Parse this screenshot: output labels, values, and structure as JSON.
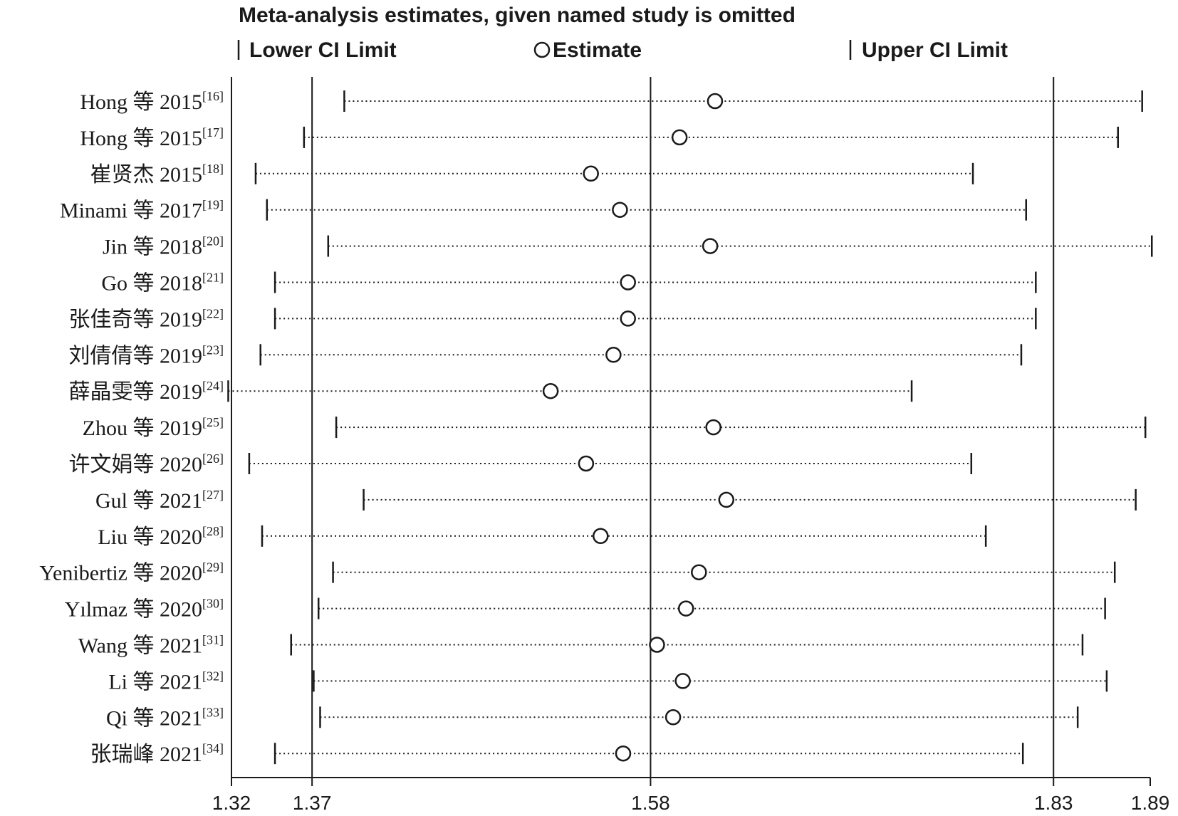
{
  "chart_data": {
    "type": "forest",
    "title": "Meta-analysis estimates, given named study is omitted",
    "legend": {
      "lower": "Lower CI Limit",
      "estimate": "Estimate",
      "upper": "Upper CI Limit"
    },
    "xlim": [
      1.32,
      1.89
    ],
    "ticks": [
      "1.32",
      "1.37",
      "1.58",
      "1.83",
      "1.89"
    ],
    "reference_lines": [
      1.37,
      1.58,
      1.83
    ],
    "studies": [
      {
        "name": "Hong 等 2015",
        "ref": "[16]",
        "lower": 1.39,
        "estimate": 1.62,
        "upper": 1.885
      },
      {
        "name": "Hong 等 2015",
        "ref": "[17]",
        "lower": 1.365,
        "estimate": 1.598,
        "upper": 1.87
      },
      {
        "name": "崔贤杰 2015",
        "ref": "[18]",
        "lower": 1.335,
        "estimate": 1.543,
        "upper": 1.78
      },
      {
        "name": "Minami 等 2017",
        "ref": "[19]",
        "lower": 1.342,
        "estimate": 1.561,
        "upper": 1.813
      },
      {
        "name": "Jin 等 2018",
        "ref": "[20]",
        "lower": 1.38,
        "estimate": 1.617,
        "upper": 1.891
      },
      {
        "name": "Go 等 2018",
        "ref": "[21]",
        "lower": 1.347,
        "estimate": 1.566,
        "upper": 1.819
      },
      {
        "name": "张佳奇等 2019",
        "ref": "[22]",
        "lower": 1.347,
        "estimate": 1.566,
        "upper": 1.819
      },
      {
        "name": "刘倩倩等 2019",
        "ref": "[23]",
        "lower": 1.338,
        "estimate": 1.557,
        "upper": 1.81
      },
      {
        "name": "薛晶雯等 2019",
        "ref": "[24]",
        "lower": 1.318,
        "estimate": 1.518,
        "upper": 1.742
      },
      {
        "name": "Zhou 等 2019",
        "ref": "[25]",
        "lower": 1.385,
        "estimate": 1.619,
        "upper": 1.887
      },
      {
        "name": "许文娟等 2020",
        "ref": "[26]",
        "lower": 1.331,
        "estimate": 1.54,
        "upper": 1.779
      },
      {
        "name": "Gul 等 2021",
        "ref": "[27]",
        "lower": 1.402,
        "estimate": 1.627,
        "upper": 1.881
      },
      {
        "name": "Liu 等 2020",
        "ref": "[28]",
        "lower": 1.339,
        "estimate": 1.549,
        "upper": 1.788
      },
      {
        "name": "Yenibertiz 等 2020",
        "ref": "[29]",
        "lower": 1.383,
        "estimate": 1.61,
        "upper": 1.868
      },
      {
        "name": "Yılmaz 等 2020",
        "ref": "[30]",
        "lower": 1.374,
        "estimate": 1.602,
        "upper": 1.862
      },
      {
        "name": "Wang 等 2021",
        "ref": "[31]",
        "lower": 1.357,
        "estimate": 1.584,
        "upper": 1.848
      },
      {
        "name": "Li 等 2021",
        "ref": "[32]",
        "lower": 1.371,
        "estimate": 1.6,
        "upper": 1.863
      },
      {
        "name": "Qi 等 2021",
        "ref": "[33]",
        "lower": 1.375,
        "estimate": 1.594,
        "upper": 1.845
      },
      {
        "name": "张瑞峰 2021",
        "ref": "[34]",
        "lower": 1.347,
        "estimate": 1.563,
        "upper": 1.811
      }
    ]
  }
}
